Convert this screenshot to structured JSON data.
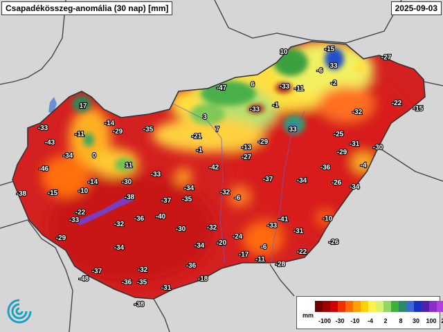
{
  "title": "Csapadékösszeg-anomália (30 nap) [mm]",
  "date": "2025-09-03",
  "legend": {
    "unit": "mm",
    "ticks": [
      "-100",
      "-30",
      "-10",
      "-4",
      "2",
      "8",
      "30",
      "100",
      "250"
    ],
    "colors": [
      "#6e0000",
      "#a00000",
      "#d00000",
      "#f03000",
      "#ff6a00",
      "#ffa000",
      "#ffd000",
      "#fff24a",
      "#d8f070",
      "#90d860",
      "#3cb03c",
      "#2a8a6a",
      "#3a6ad8",
      "#1a30c0",
      "#5020a8",
      "#8a30c8",
      "#b040e0"
    ]
  },
  "colors": {
    "outside_land": "#d8d8d8",
    "main_fill": "#d42020",
    "border": "#333333"
  },
  "stations": [
    {
      "v": "17"
    },
    {
      "v": "10"
    },
    {
      "v": "-15"
    },
    {
      "v": "-27"
    },
    {
      "v": "33"
    },
    {
      "v": "-6"
    },
    {
      "v": "-2"
    },
    {
      "v": "-47"
    },
    {
      "v": "6"
    },
    {
      "v": "-33"
    },
    {
      "v": "-11"
    },
    {
      "v": "-33"
    },
    {
      "v": "-1"
    },
    {
      "v": "-32"
    },
    {
      "v": "-22"
    },
    {
      "v": "-15"
    },
    {
      "v": "-33"
    },
    {
      "v": "-11"
    },
    {
      "v": "-14"
    },
    {
      "v": "-29"
    },
    {
      "v": "-35"
    },
    {
      "v": "3"
    },
    {
      "v": "7"
    },
    {
      "v": "33"
    },
    {
      "v": "-25"
    },
    {
      "v": "-43"
    },
    {
      "v": "-34"
    },
    {
      "v": "0"
    },
    {
      "v": "-21"
    },
    {
      "v": "-1"
    },
    {
      "v": "-13"
    },
    {
      "v": "-29"
    },
    {
      "v": "-31"
    },
    {
      "v": "-30"
    },
    {
      "v": "-46"
    },
    {
      "v": "11"
    },
    {
      "v": "-33"
    },
    {
      "v": "-42"
    },
    {
      "v": "-27"
    },
    {
      "v": "-36"
    },
    {
      "v": "-29"
    },
    {
      "v": "-4"
    },
    {
      "v": "-15"
    },
    {
      "v": "-10"
    },
    {
      "v": "-14"
    },
    {
      "v": "-30"
    },
    {
      "v": "-34"
    },
    {
      "v": "-37"
    },
    {
      "v": "-34"
    },
    {
      "v": "-26"
    },
    {
      "v": "-34"
    },
    {
      "v": "-38"
    },
    {
      "v": "-38"
    },
    {
      "v": "-32"
    },
    {
      "v": "-6"
    },
    {
      "v": "-37"
    },
    {
      "v": "-35"
    },
    {
      "v": "-22"
    },
    {
      "v": "-33"
    },
    {
      "v": "-36"
    },
    {
      "v": "-40"
    },
    {
      "v": "-32"
    },
    {
      "v": "-41"
    },
    {
      "v": "-10"
    },
    {
      "v": "-30"
    },
    {
      "v": "-32"
    },
    {
      "v": "-33"
    },
    {
      "v": "-31"
    },
    {
      "v": "-29"
    },
    {
      "v": "-24"
    },
    {
      "v": "-20"
    },
    {
      "v": "-34"
    },
    {
      "v": "-6"
    },
    {
      "v": "-26"
    },
    {
      "v": "-34"
    },
    {
      "v": "-17"
    },
    {
      "v": "-11"
    },
    {
      "v": "-22"
    },
    {
      "v": "-37"
    },
    {
      "v": "-32"
    },
    {
      "v": "-36"
    },
    {
      "v": "-28"
    },
    {
      "v": "-48"
    },
    {
      "v": "-36"
    },
    {
      "v": "-35"
    },
    {
      "v": "-18"
    },
    {
      "v": "-31"
    },
    {
      "v": "-38"
    }
  ]
}
